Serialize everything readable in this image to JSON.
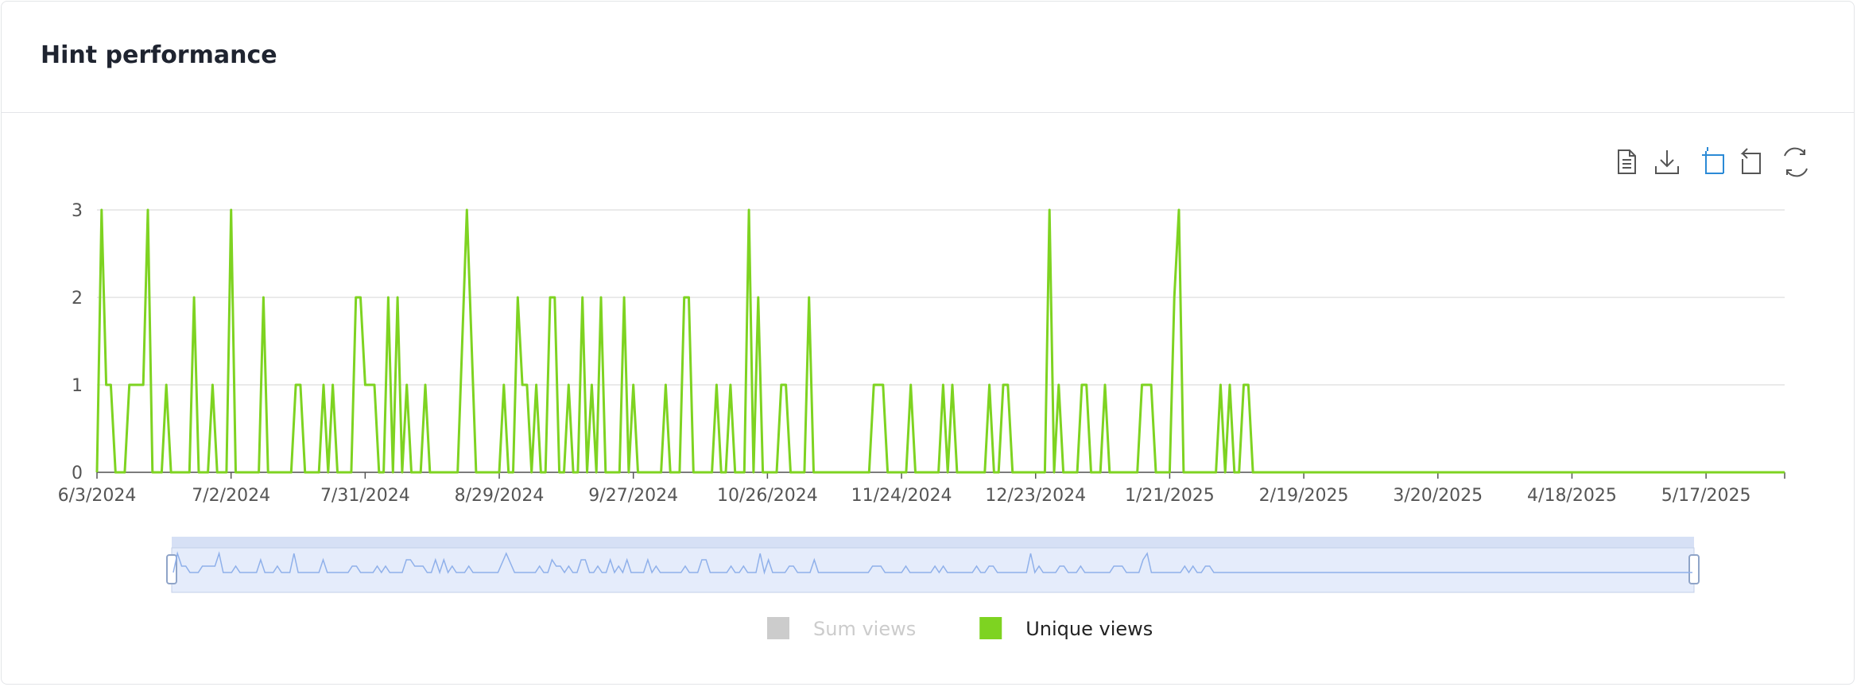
{
  "header": {
    "title": "Hint performance"
  },
  "chart_data": {
    "type": "line",
    "x": [
      "6/3/2024",
      "6/4/2024",
      "6/5/2024",
      "6/6/2024",
      "6/7/2024",
      "6/9/2024",
      "6/10/2024",
      "6/13/2024",
      "6/14/2024",
      "6/15/2024",
      "6/17/2024",
      "6/18/2024",
      "6/19/2024",
      "6/23/2024",
      "6/24/2024",
      "6/25/2024",
      "6/27/2024",
      "6/28/2024",
      "6/29/2024",
      "7/1/2024",
      "7/2/2024",
      "7/3/2024",
      "7/8/2024",
      "7/9/2024",
      "7/10/2024",
      "7/15/2024",
      "7/16/2024",
      "7/17/2024",
      "7/18/2024",
      "7/21/2024",
      "7/22/2024",
      "7/23/2024",
      "7/24/2024",
      "7/25/2024",
      "7/28/2024",
      "7/29/2024",
      "7/30/2024",
      "7/31/2024",
      "8/2/2024",
      "8/3/2024",
      "8/4/2024",
      "8/5/2024",
      "8/6/2024",
      "8/7/2024",
      "8/8/2024",
      "8/9/2024",
      "8/10/2024",
      "8/12/2024",
      "8/13/2024",
      "8/14/2024",
      "8/20/2024",
      "8/22/2024",
      "8/24/2024",
      "8/29/2024",
      "8/30/2024",
      "8/31/2024",
      "9/1/2024",
      "9/2/2024",
      "9/3/2024",
      "9/4/2024",
      "9/5/2024",
      "9/6/2024",
      "9/7/2024",
      "9/8/2024",
      "9/9/2024",
      "9/10/2024",
      "9/11/2024",
      "9/12/2024",
      "9/13/2024",
      "9/14/2024",
      "9/15/2024",
      "9/16/2024",
      "9/17/2024",
      "9/18/2024",
      "9/19/2024",
      "9/20/2024",
      "9/21/2024",
      "9/24/2024",
      "9/25/2024",
      "9/26/2024",
      "9/27/2024",
      "9/28/2024",
      "10/3/2024",
      "10/4/2024",
      "10/5/2024",
      "10/7/2024",
      "10/8/2024",
      "10/9/2024",
      "10/10/2024",
      "10/14/2024",
      "10/15/2024",
      "10/16/2024",
      "10/17/2024",
      "10/18/2024",
      "10/19/2024",
      "10/21/2024",
      "10/22/2024",
      "10/23/2024",
      "10/24/2024",
      "10/25/2024",
      "10/28/2024",
      "10/29/2024",
      "10/30/2024",
      "10/31/2024",
      "11/3/2024",
      "11/4/2024",
      "11/5/2024",
      "11/17/2024",
      "11/18/2024",
      "11/20/2024",
      "11/21/2024",
      "11/25/2024",
      "11/26/2024",
      "11/27/2024",
      "12/2/2024",
      "12/3/2024",
      "12/4/2024",
      "12/5/2024",
      "12/6/2024",
      "12/12/2024",
      "12/13/2024",
      "12/14/2024",
      "12/15/2024",
      "12/16/2024",
      "12/17/2024",
      "12/18/2024",
      "12/25/2024",
      "12/26/2024",
      "12/27/2024",
      "12/28/2024",
      "12/29/2024",
      "1/1/2025",
      "1/2/2025",
      "1/3/2025",
      "1/4/2025",
      "1/6/2025",
      "1/7/2025",
      "1/8/2025",
      "1/14/2025",
      "1/15/2025",
      "1/17/2025",
      "1/18/2025",
      "1/21/2025",
      "1/22/2025",
      "1/23/2025",
      "1/24/2025",
      "1/31/2025",
      "2/1/2025",
      "2/2/2025",
      "2/3/2025",
      "2/4/2025",
      "2/5/2025",
      "2/6/2025",
      "2/7/2025",
      "2/8/2025",
      "6/3/2025"
    ],
    "series": [
      {
        "name": "Sum views",
        "color": "#cccccc",
        "visible": false
      },
      {
        "name": "Unique views",
        "color": "#7ed321",
        "visible": true,
        "values": [
          0,
          3,
          1,
          1,
          0,
          0,
          1,
          1,
          3,
          0,
          0,
          1,
          0,
          0,
          2,
          0,
          0,
          1,
          0,
          0,
          3,
          0,
          0,
          2,
          0,
          0,
          1,
          1,
          0,
          0,
          1,
          0,
          1,
          0,
          0,
          2,
          2,
          1,
          1,
          0,
          0,
          2,
          0,
          2,
          0,
          1,
          0,
          0,
          1,
          0,
          0,
          3,
          0,
          0,
          1,
          0,
          0,
          2,
          1,
          1,
          0,
          1,
          0,
          0,
          2,
          2,
          0,
          0,
          1,
          0,
          0,
          2,
          0,
          1,
          0,
          2,
          0,
          0,
          2,
          0,
          1,
          0,
          0,
          1,
          0,
          0,
          2,
          2,
          0,
          0,
          1,
          0,
          0,
          1,
          0,
          0,
          3,
          0,
          2,
          0,
          0,
          1,
          1,
          0,
          0,
          2,
          0,
          0,
          1,
          1,
          0,
          0,
          1,
          0,
          0,
          1,
          0,
          1,
          0,
          0,
          1,
          0,
          0,
          1,
          1,
          0,
          0,
          3,
          0,
          1,
          0,
          0,
          1,
          1,
          0,
          0,
          1,
          0,
          0,
          1,
          1,
          0,
          0,
          2,
          3,
          0,
          0,
          1,
          0,
          1,
          0,
          0,
          1,
          1,
          0,
          0
        ]
      }
    ],
    "xlim": [
      "6/3/2024",
      "6/3/2025"
    ],
    "xticks": [
      "6/3/2024",
      "7/2/2024",
      "7/31/2024",
      "8/29/2024",
      "9/27/2024",
      "10/26/2024",
      "11/24/2024",
      "12/23/2024",
      "1/21/2025",
      "2/19/2025",
      "3/20/2025",
      "4/18/2025",
      "5/17/2025"
    ],
    "ylim": [
      0,
      3
    ],
    "yticks": [
      0,
      1,
      2,
      3
    ],
    "grid": true,
    "legend": "bottom"
  }
}
